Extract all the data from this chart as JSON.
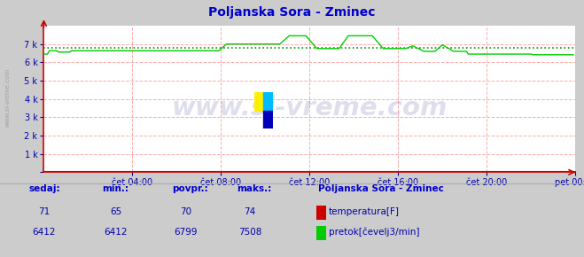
{
  "title": "Poljanska Sora - Zminec",
  "title_color": "#0000cc",
  "bg_color": "#cccccc",
  "plot_bg_color": "#ffffff",
  "grid_color": "#ffaaaa",
  "grid_style": "--",
  "ylim": [
    0,
    8000
  ],
  "yticks": [
    0,
    1000,
    2000,
    3000,
    4000,
    5000,
    6000,
    7000
  ],
  "ytick_labels": [
    "",
    "1 k",
    "2 k",
    "3 k",
    "4 k",
    "5 k",
    "6 k",
    "7 k"
  ],
  "xtick_labels": [
    "čet 04:00",
    "čet 08:00",
    "čet 12:00",
    "čet 16:00",
    "čet 20:00",
    "pet 00:00"
  ],
  "xtick_positions": [
    48,
    96,
    144,
    192,
    240,
    288
  ],
  "n_points": 288,
  "temp_color": "#cc0000",
  "flow_color": "#00cc00",
  "avg_line_color": "#009900",
  "avg_value": 6799,
  "axis_color": "#cc0000",
  "tick_label_color": "#0000aa",
  "watermark_text": "www.si-vreme.com",
  "watermark_color": "#000077",
  "watermark_alpha": 0.13,
  "sidebar_color": "#999999",
  "sedaj_label": "sedaj:",
  "min_label": "min.:",
  "povpr_label": "povpr.:",
  "maks_label": "maks.:",
  "station_label": "Poljanska Sora - Zminec",
  "temp_label": "temperatura[F]",
  "flow_label": "pretok[čevelj3/min]",
  "temp_sedaj": 71,
  "temp_min": 65,
  "temp_povpr": 70,
  "temp_maks": 74,
  "flow_sedaj": 6412,
  "flow_min": 6412,
  "flow_povpr": 6799,
  "flow_maks": 7508,
  "table_label_color": "#0000cc",
  "table_value_color": "#0000aa"
}
